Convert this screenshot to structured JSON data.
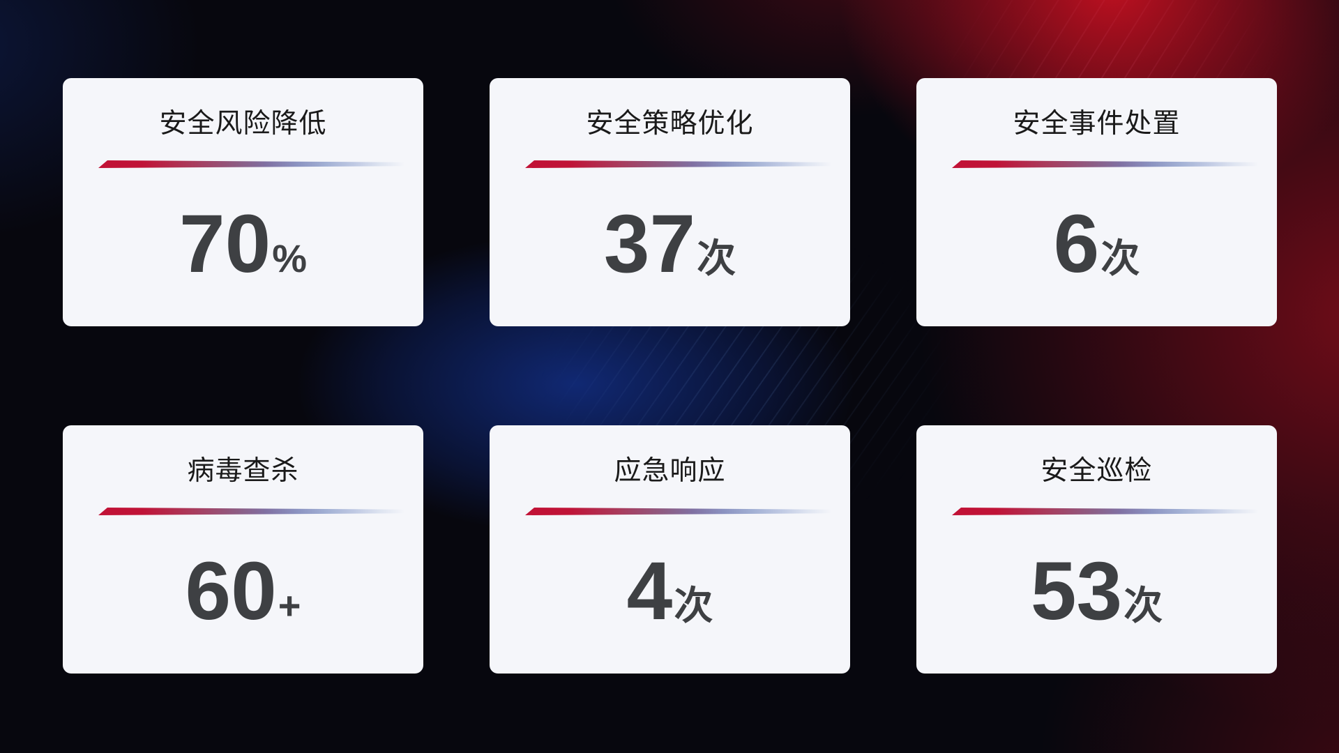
{
  "theme": {
    "card_bg": "#f5f6fa",
    "title_color": "#1a1a1a",
    "value_color": "#3e4043",
    "accent_red": "#c11236",
    "accent_purple": "#8070a2",
    "accent_blue": "#a2b0d4"
  },
  "cards": [
    {
      "title": "安全风险降低",
      "value": "70",
      "unit": "%"
    },
    {
      "title": "安全策略优化",
      "value": "37",
      "unit": "次"
    },
    {
      "title": "安全事件处置",
      "value": "6",
      "unit": "次"
    },
    {
      "title": "病毒查杀",
      "value": "60",
      "unit": "+"
    },
    {
      "title": "应急响应",
      "value": "4",
      "unit": "次"
    },
    {
      "title": "安全巡检",
      "value": "53",
      "unit": "次"
    }
  ]
}
